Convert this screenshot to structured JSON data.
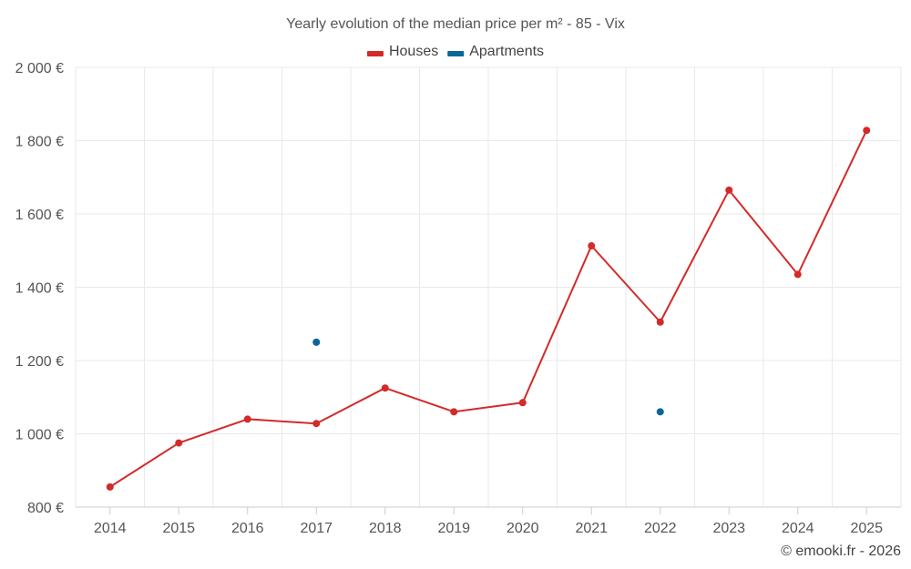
{
  "chart_data": {
    "type": "line",
    "title": "Yearly evolution of the median price per m² - 85 - Vix",
    "xlabel": "",
    "ylabel": "",
    "categories": [
      "2014",
      "2015",
      "2016",
      "2017",
      "2018",
      "2019",
      "2020",
      "2021",
      "2022",
      "2023",
      "2024",
      "2025"
    ],
    "ylim": [
      800,
      2000
    ],
    "yticks": [
      800,
      1000,
      1200,
      1400,
      1600,
      1800,
      2000
    ],
    "ytick_labels": [
      "800 €",
      "1 000 €",
      "1 200 €",
      "1 400 €",
      "1 600 €",
      "1 800 €",
      "2 000 €"
    ],
    "grid": true,
    "legend_position": "top-center",
    "series": [
      {
        "name": "Houses",
        "color": "#d32a2a",
        "values": [
          855,
          975,
          1040,
          1028,
          1125,
          1060,
          1085,
          1513,
          1305,
          1665,
          1435,
          1828
        ]
      },
      {
        "name": "Apartments",
        "color": "#0b6599",
        "values": [
          null,
          null,
          null,
          1250,
          null,
          null,
          null,
          null,
          1060,
          null,
          null,
          null
        ]
      }
    ],
    "credit": "© emooki.fr - 2026"
  }
}
